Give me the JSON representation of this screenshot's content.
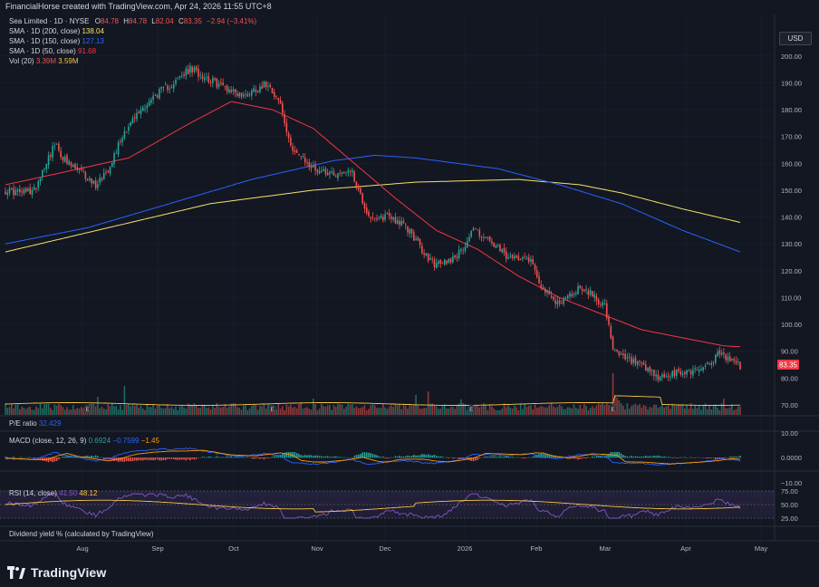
{
  "header": {
    "title": "FinancialHorse created with TradingView.com, Apr 24, 2026 11:55 UTC+8"
  },
  "currency_button": "USD",
  "legend": {
    "symbol": "Sea Limited · 1D · NYSE",
    "ohlc": {
      "o_label": "O",
      "o": "84.78",
      "h_label": "H",
      "h": "84.78",
      "l_label": "L",
      "l": "82.04",
      "c_label": "C",
      "c": "83.35",
      "chg": "−2.94 (−3.41%)"
    },
    "indicators": [
      {
        "label": "SMA · 1D (200, close)",
        "value": "138.04",
        "color": "#f5e26b"
      },
      {
        "label": "SMA · 1D (150, close)",
        "value": "127.13",
        "color": "#2962ff"
      },
      {
        "label": "SMA · 1D (50, close)",
        "value": "91.68",
        "color": "#f23645"
      }
    ],
    "volume": {
      "label": "Vol (20)",
      "v1": "3.39M",
      "v2": "3.59M"
    }
  },
  "pe_label": "P/E ratio",
  "pe_value": "32.429",
  "macd_legend": {
    "label": "MACD (close, 12, 26, 9)",
    "v1": "0.6924",
    "v2": "−0.7599",
    "v3": "−1.45"
  },
  "rsi_legend": {
    "label": "RSI (14, close)",
    "v1": "41.50",
    "v2": "48.12"
  },
  "dividend_label": "Dividend yield % (calculated by TradingView)",
  "logo_text": "TradingView",
  "last_price_tag": "83.35",
  "colors": {
    "up": "#26a69a",
    "down": "#ef5350",
    "sma200": "#f5e26b",
    "sma150": "#2962ff",
    "sma50": "#f23645"
  },
  "chart_data": {
    "type": "candlestick",
    "price_axis": {
      "ticks": [
        "200.00",
        "190.00",
        "180.00",
        "170.00",
        "160.00",
        "150.00",
        "140.00",
        "130.00",
        "120.00",
        "110.00",
        "100.00",
        "90.00",
        "80.00",
        "70.00"
      ],
      "range": [
        66,
        204
      ]
    },
    "macd_axis": {
      "ticks": [
        "10.00",
        "0.0000",
        "−10.00"
      ]
    },
    "rsi_axis": {
      "ticks": [
        "75.00",
        "50.00",
        "25.00"
      ]
    },
    "x_ticks": [
      "Aug",
      "Sep",
      "Oct",
      "Nov",
      "Dec",
      "2026",
      "Feb",
      "Mar",
      "Apr",
      "May"
    ],
    "event_markers": [
      "E",
      "E",
      "E",
      "E"
    ],
    "price_anchors": [
      [
        0,
        150
      ],
      [
        8,
        149
      ],
      [
        14,
        150
      ],
      [
        20,
        161
      ],
      [
        24,
        167
      ],
      [
        30,
        160
      ],
      [
        36,
        157
      ],
      [
        44,
        152
      ],
      [
        50,
        158
      ],
      [
        58,
        172
      ],
      [
        66,
        180
      ],
      [
        74,
        186
      ],
      [
        82,
        190
      ],
      [
        90,
        195
      ],
      [
        96,
        193
      ],
      [
        102,
        190
      ],
      [
        108,
        188
      ],
      [
        116,
        185
      ],
      [
        122,
        188
      ],
      [
        128,
        190
      ],
      [
        134,
        182
      ],
      [
        138,
        168
      ],
      [
        144,
        162
      ],
      [
        150,
        158
      ],
      [
        156,
        157
      ],
      [
        162,
        156
      ],
      [
        168,
        158
      ],
      [
        172,
        150
      ],
      [
        176,
        142
      ],
      [
        180,
        138
      ],
      [
        186,
        141
      ],
      [
        192,
        138
      ],
      [
        198,
        134
      ],
      [
        204,
        126
      ],
      [
        210,
        122
      ],
      [
        216,
        124
      ],
      [
        222,
        127
      ],
      [
        228,
        136
      ],
      [
        234,
        132
      ],
      [
        240,
        128
      ],
      [
        246,
        124
      ],
      [
        252,
        126
      ],
      [
        256,
        124
      ],
      [
        262,
        113
      ],
      [
        268,
        108
      ],
      [
        274,
        110
      ],
      [
        280,
        114
      ],
      [
        286,
        111
      ],
      [
        292,
        107
      ],
      [
        296,
        90
      ],
      [
        300,
        88
      ],
      [
        306,
        86
      ],
      [
        312,
        83
      ],
      [
        318,
        80
      ],
      [
        324,
        81
      ],
      [
        330,
        82
      ],
      [
        336,
        83
      ],
      [
        342,
        85
      ],
      [
        348,
        89
      ],
      [
        352,
        87
      ],
      [
        356,
        86
      ],
      [
        358,
        84
      ]
    ],
    "sma200": [
      [
        0,
        127
      ],
      [
        50,
        136
      ],
      [
        100,
        145
      ],
      [
        150,
        150
      ],
      [
        200,
        153
      ],
      [
        250,
        154
      ],
      [
        280,
        152
      ],
      [
        300,
        149
      ],
      [
        330,
        143
      ],
      [
        358,
        138
      ]
    ],
    "sma150": [
      [
        0,
        130
      ],
      [
        40,
        136
      ],
      [
        80,
        145
      ],
      [
        120,
        154
      ],
      [
        160,
        161
      ],
      [
        180,
        163
      ],
      [
        200,
        162
      ],
      [
        240,
        158
      ],
      [
        270,
        152
      ],
      [
        300,
        145
      ],
      [
        330,
        135
      ],
      [
        358,
        127
      ]
    ],
    "sma50": [
      [
        0,
        152
      ],
      [
        30,
        157
      ],
      [
        60,
        162
      ],
      [
        90,
        175
      ],
      [
        110,
        183
      ],
      [
        130,
        180
      ],
      [
        150,
        173
      ],
      [
        170,
        160
      ],
      [
        190,
        147
      ],
      [
        210,
        135
      ],
      [
        230,
        128
      ],
      [
        250,
        118
      ],
      [
        270,
        110
      ],
      [
        290,
        104
      ],
      [
        310,
        98
      ],
      [
        330,
        95
      ],
      [
        350,
        92
      ],
      [
        358,
        91.68
      ]
    ],
    "last_price": 83.35
  }
}
